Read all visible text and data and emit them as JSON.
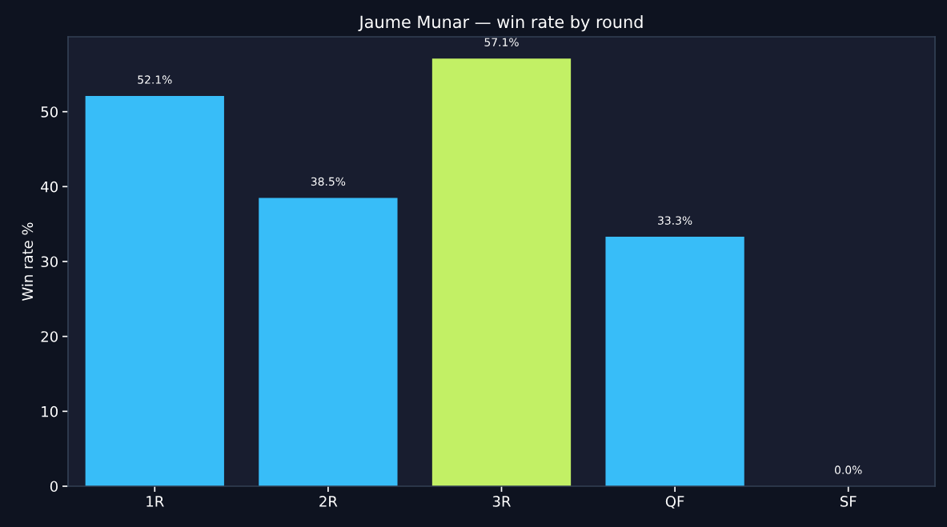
{
  "chart_data": {
    "type": "bar",
    "title": "Jaume Munar — win rate by round",
    "ylabel": "Win rate %",
    "categories": [
      "1R",
      "2R",
      "3R",
      "QF",
      "SF"
    ],
    "values": [
      52.1,
      38.5,
      57.1,
      33.3,
      0.0
    ],
    "colors": [
      "#38bdf8",
      "#38bdf8",
      "#c2f065",
      "#38bdf8",
      "#38bdf8"
    ],
    "value_labels": [
      "52.1%",
      "38.5%",
      "57.1%",
      "33.3%",
      "0.0%"
    ],
    "ylim": [
      0,
      60
    ],
    "yticks": [
      0,
      10,
      20,
      30,
      40,
      50
    ],
    "grid": false
  }
}
